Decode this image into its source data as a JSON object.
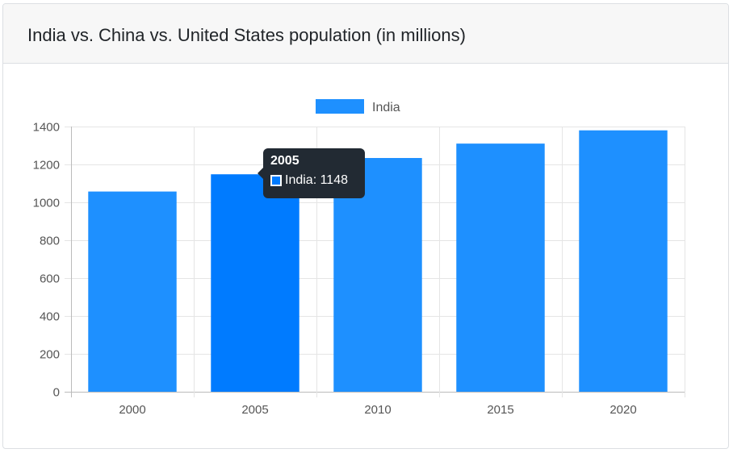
{
  "card": {
    "title": "India vs. China vs. United States population (in millions)"
  },
  "colors": {
    "bar": "#1e90ff",
    "bar_hover": "#007bff",
    "grid": "#e5e5e5",
    "axis": "#bbbbbb"
  },
  "tooltip": {
    "title": "2005",
    "label": "India: 1148"
  },
  "chart_data": {
    "type": "bar",
    "categories": [
      "2000",
      "2005",
      "2010",
      "2015",
      "2020"
    ],
    "series": [
      {
        "name": "India",
        "values": [
          1057,
          1148,
          1234,
          1310,
          1380
        ]
      }
    ],
    "ylim": [
      0,
      1400
    ],
    "yticks": [
      0,
      200,
      400,
      600,
      800,
      1000,
      1200,
      1400
    ],
    "legend_position": "top",
    "grid": true,
    "highlighted_category": "2005"
  }
}
